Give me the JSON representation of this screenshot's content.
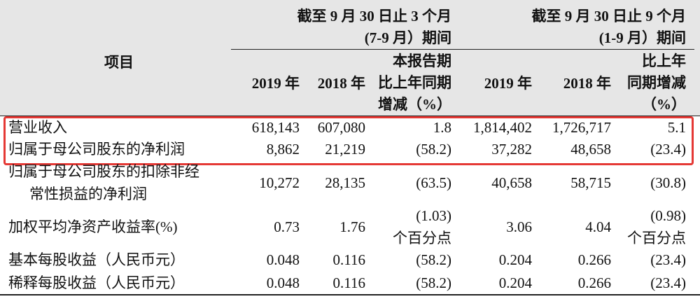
{
  "table": {
    "groups": [
      {
        "lines": [
          "截至 9 月 30 日止 3 个月",
          "(7-9 月）期间"
        ]
      },
      {
        "lines": [
          "截至 9 月 30 日止 9 个月",
          "(1-9 月）期间"
        ]
      }
    ],
    "item_header": "项目",
    "columns": [
      {
        "lines": [
          "2019 年"
        ]
      },
      {
        "lines": [
          "2018 年"
        ]
      },
      {
        "lines": [
          "本报告期",
          "比上年同期",
          "增减（%）"
        ]
      },
      {
        "lines": [
          "2019 年"
        ]
      },
      {
        "lines": [
          "2018 年"
        ]
      },
      {
        "lines": [
          "比上年",
          "同期增减",
          "（%）"
        ]
      }
    ],
    "rows": [
      {
        "item": [
          "营业收入"
        ],
        "cells": [
          [
            "618,143"
          ],
          [
            "607,080"
          ],
          [
            "1.8"
          ],
          [
            "1,814,402"
          ],
          [
            "1,726,717"
          ],
          [
            "5.1"
          ]
        ]
      },
      {
        "item": [
          "归属于母公司股东的净利润"
        ],
        "cells": [
          [
            "8,862"
          ],
          [
            "21,219"
          ],
          [
            "(58.2)"
          ],
          [
            "37,282"
          ],
          [
            "48,658"
          ],
          [
            "(23.4)"
          ]
        ]
      },
      {
        "item": [
          "归属于母公司股东的扣除非经",
          "常性损益的净利润"
        ],
        "cells": [
          [
            "10,272"
          ],
          [
            "28,135"
          ],
          [
            "(63.5)"
          ],
          [
            "40,658"
          ],
          [
            "58,715"
          ],
          [
            "(30.8)"
          ]
        ]
      },
      {
        "item": [
          "加权平均净资产收益率(%)"
        ],
        "cells": [
          [
            "0.73"
          ],
          [
            "1.76"
          ],
          [
            "(1.03)",
            "个百分点"
          ],
          [
            "3.06"
          ],
          [
            "4.04"
          ],
          [
            "(0.98)",
            "个百分点"
          ]
        ]
      },
      {
        "item": [
          "基本每股收益（人民币元）"
        ],
        "cells": [
          [
            "0.048"
          ],
          [
            "0.116"
          ],
          [
            "(58.2)"
          ],
          [
            "0.204"
          ],
          [
            "0.266"
          ],
          [
            "(23.4)"
          ]
        ]
      },
      {
        "item": [
          "稀释每股收益（人民币元）"
        ],
        "cells": [
          [
            "0.048"
          ],
          [
            "0.116"
          ],
          [
            "(58.2)"
          ],
          [
            "0.204"
          ],
          [
            "0.266"
          ],
          [
            "(23.4)"
          ]
        ]
      }
    ]
  }
}
